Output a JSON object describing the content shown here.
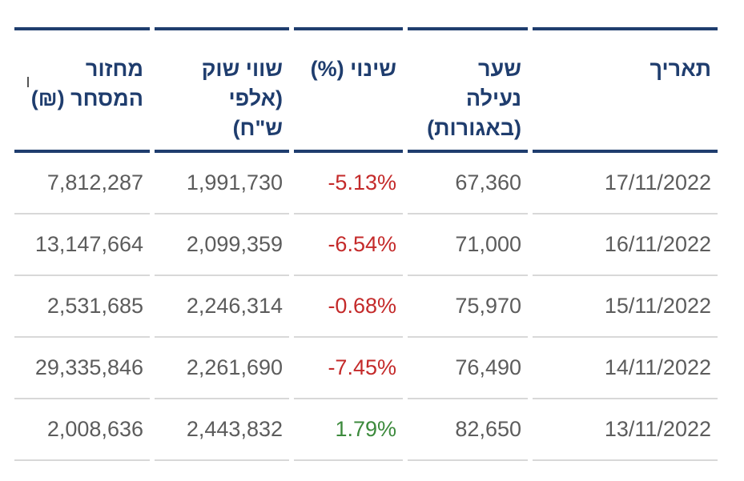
{
  "table": {
    "headers": {
      "date": [
        "תאריך"
      ],
      "close_price": [
        "שער",
        "נעילה",
        "(באגורות)"
      ],
      "change": [
        "שינוי (%)"
      ],
      "market_value": [
        "שווי שוק",
        "(אלפי",
        "ש\"ח)"
      ],
      "turnover": [
        "מחזור",
        "המסחר (₪)"
      ]
    },
    "rows": [
      {
        "date": "17/11/2022",
        "close_price": "67,360",
        "change": "-5.13%",
        "market_value": "1,991,730",
        "turnover": "7,812,287"
      },
      {
        "date": "16/11/2022",
        "close_price": "71,000",
        "change": "-6.54%",
        "market_value": "2,099,359",
        "turnover": "13,147,664"
      },
      {
        "date": "15/11/2022",
        "close_price": "75,970",
        "change": "-0.68%",
        "market_value": "2,246,314",
        "turnover": "2,531,685"
      },
      {
        "date": "14/11/2022",
        "close_price": "76,490",
        "change": "-7.45%",
        "market_value": "2,261,690",
        "turnover": "29,335,846"
      },
      {
        "date": "13/11/2022",
        "close_price": "82,650",
        "change": "1.79%",
        "market_value": "2,443,832",
        "turnover": "2,008,636"
      }
    ]
  },
  "colors": {
    "header_text": "#1f3d6e",
    "header_rule": "#1f3d6e",
    "negative": "#c42a2a",
    "positive": "#3c8a3c",
    "cell_text": "#5c5c5c",
    "row_divider": "#d8d8d8"
  }
}
